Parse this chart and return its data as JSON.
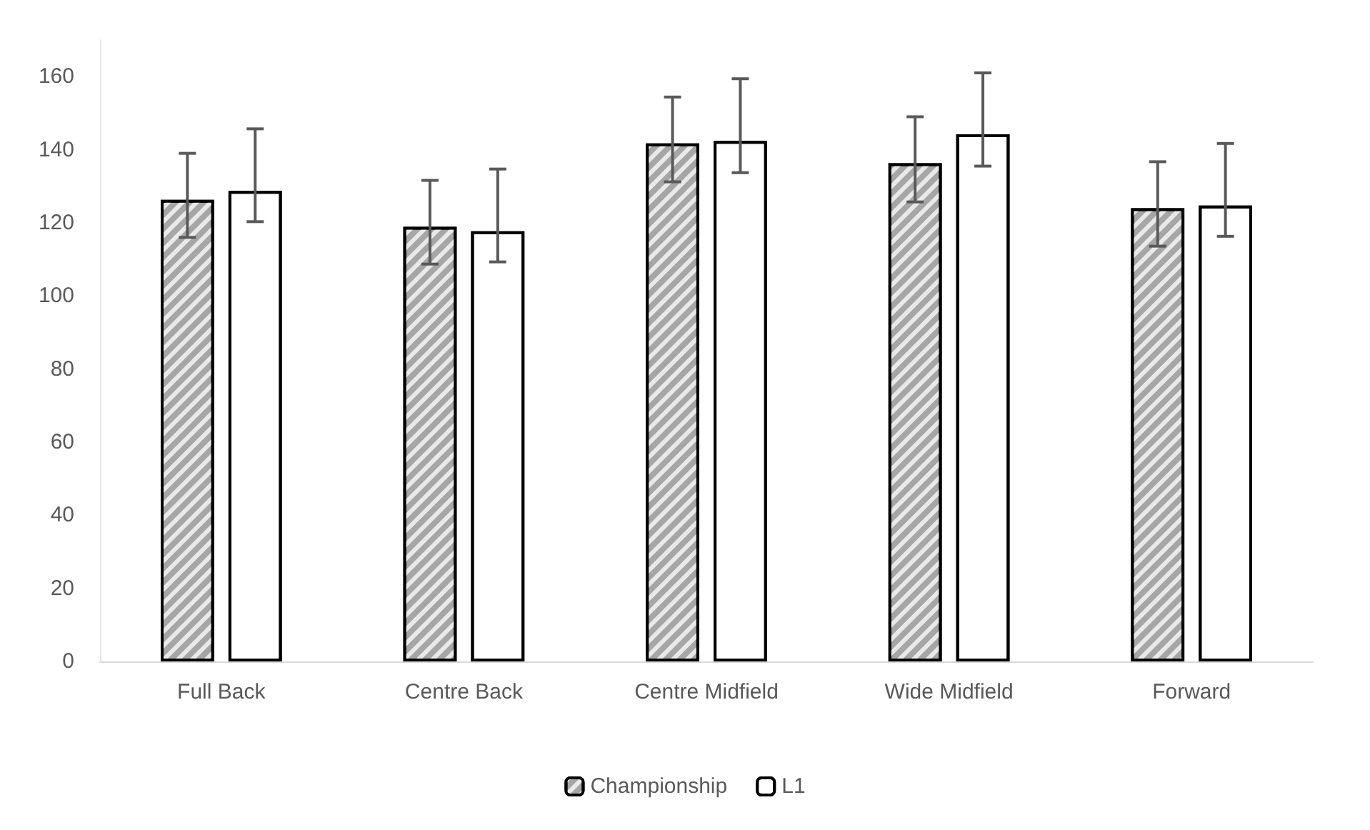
{
  "chart_data": {
    "type": "bar",
    "categories": [
      "Full Back",
      "Centre Back",
      "Centre Midfield",
      "Wide Midfield",
      "Forward"
    ],
    "series": [
      {
        "name": "Championship",
        "color": "#a6a6a6",
        "values": [
          126.3,
          118.9,
          141.7,
          136.3,
          124.0
        ],
        "errors": [
          [
            116.0,
            139.0
          ],
          [
            108.7,
            131.6
          ],
          [
            131.2,
            154.4
          ],
          [
            125.7,
            149.0
          ],
          [
            113.6,
            136.7
          ]
        ]
      },
      {
        "name": "L1",
        "color": "#ffffff",
        "values": [
          128.7,
          117.7,
          142.4,
          144.2,
          124.7
        ],
        "errors": [
          [
            120.3,
            145.7
          ],
          [
            109.3,
            134.7
          ],
          [
            133.7,
            159.4
          ],
          [
            135.5,
            161.0
          ],
          [
            116.3,
            141.7
          ]
        ]
      }
    ],
    "ylim": [
      0,
      170
    ],
    "yticks": [
      0,
      20,
      40,
      60,
      80,
      100,
      120,
      140,
      160
    ],
    "grid": false,
    "legend": "bottom"
  }
}
